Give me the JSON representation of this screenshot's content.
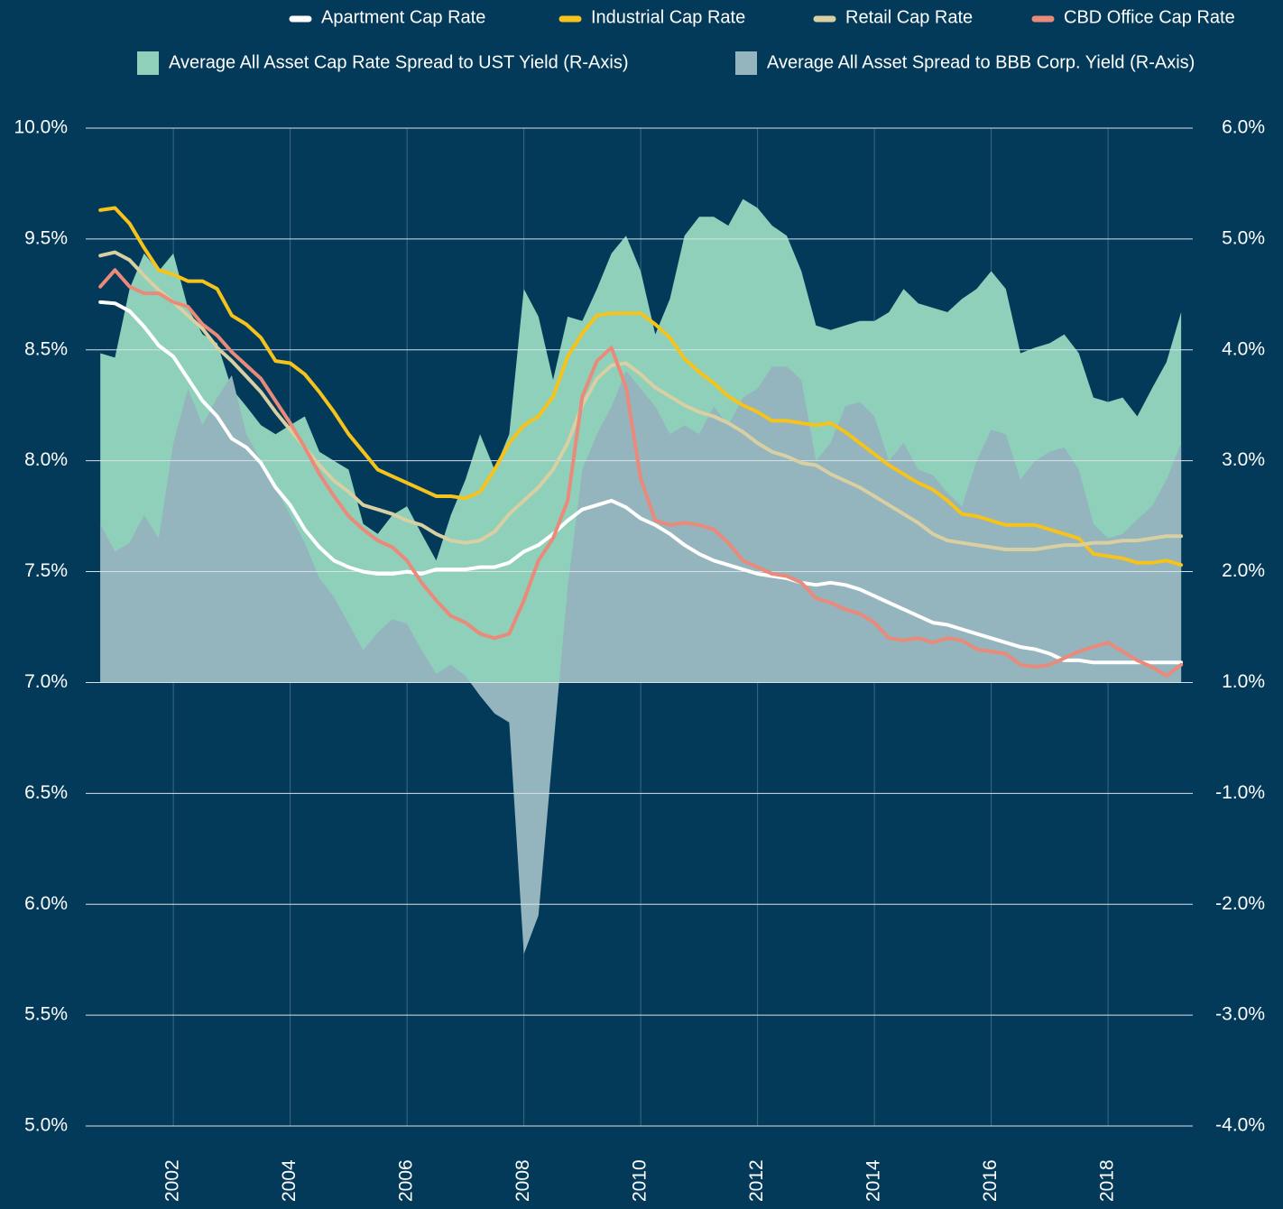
{
  "chart_data": {
    "type": "line",
    "x": [
      2000.75,
      2001,
      2001.25,
      2001.5,
      2001.75,
      2002,
      2002.25,
      2002.5,
      2002.75,
      2003,
      2003.25,
      2003.5,
      2003.75,
      2004,
      2004.25,
      2004.5,
      2004.75,
      2005,
      2005.25,
      2005.5,
      2005.75,
      2006,
      2006.25,
      2006.5,
      2006.75,
      2007,
      2007.25,
      2007.5,
      2007.75,
      2008,
      2008.25,
      2008.5,
      2008.75,
      2009,
      2009.25,
      2009.5,
      2009.75,
      2010,
      2010.25,
      2010.5,
      2010.75,
      2011,
      2011.25,
      2011.5,
      2011.75,
      2012,
      2012.25,
      2012.5,
      2012.75,
      2013,
      2013.25,
      2013.5,
      2013.75,
      2014,
      2014.25,
      2014.5,
      2014.75,
      2015,
      2015.25,
      2015.5,
      2015.75,
      2016,
      2016.25,
      2016.5,
      2016.75,
      2017,
      2017.25,
      2017.5,
      2017.75,
      2018,
      2018.25,
      2018.5,
      2018.75,
      2019,
      2019.25
    ],
    "series": [
      {
        "name": "Apartment Cap Rate",
        "color": "#ffffff",
        "type": "line",
        "values": [
          8.93,
          8.92,
          8.85,
          8.71,
          8.54,
          8.47,
          8.37,
          8.27,
          8.2,
          8.1,
          8.06,
          7.99,
          7.88,
          7.8,
          7.69,
          7.61,
          7.55,
          7.52,
          7.5,
          7.49,
          7.49,
          7.5,
          7.49,
          7.51,
          7.51,
          7.51,
          7.52,
          7.52,
          7.54,
          7.59,
          7.62,
          7.67,
          7.73,
          7.78,
          7.8,
          7.82,
          7.79,
          7.74,
          7.71,
          7.67,
          7.62,
          7.58,
          7.55,
          7.53,
          7.51,
          7.49,
          7.48,
          7.47,
          7.45,
          7.44,
          7.45,
          7.44,
          7.42,
          7.39,
          7.36,
          7.33,
          7.3,
          7.27,
          7.26,
          7.24,
          7.22,
          7.2,
          7.18,
          7.16,
          7.15,
          7.13,
          7.1,
          7.1,
          7.09,
          7.09,
          7.09,
          7.09,
          7.09,
          7.09,
          7.09
        ]
      },
      {
        "name": "Industrial Cap Rate",
        "color": "#f6c21c",
        "type": "line",
        "values": [
          9.63,
          9.64,
          9.57,
          9.42,
          9.22,
          9.18,
          9.12,
          9.12,
          9.05,
          8.81,
          8.73,
          8.61,
          8.45,
          8.44,
          8.39,
          8.31,
          8.22,
          8.12,
          8.04,
          7.96,
          7.93,
          7.9,
          7.87,
          7.84,
          7.84,
          7.83,
          7.86,
          7.96,
          8.08,
          8.16,
          8.2,
          8.29,
          8.47,
          8.65,
          8.81,
          8.83,
          8.83,
          8.83,
          8.73,
          8.61,
          8.46,
          8.4,
          8.35,
          8.29,
          8.25,
          8.22,
          8.18,
          8.18,
          8.17,
          8.16,
          8.17,
          8.13,
          8.08,
          8.03,
          7.98,
          7.94,
          7.9,
          7.87,
          7.82,
          7.76,
          7.75,
          7.73,
          7.71,
          7.71,
          7.71,
          7.69,
          7.67,
          7.65,
          7.58,
          7.57,
          7.56,
          7.54,
          7.54,
          7.55,
          7.53
        ]
      },
      {
        "name": "Retail Cap Rate",
        "color": "#d8cfa2",
        "type": "line",
        "values": [
          9.35,
          9.38,
          9.31,
          9.17,
          9.04,
          8.93,
          8.81,
          8.69,
          8.52,
          8.45,
          8.38,
          8.31,
          8.22,
          8.14,
          8.06,
          7.98,
          7.91,
          7.86,
          7.8,
          7.78,
          7.76,
          7.73,
          7.71,
          7.67,
          7.64,
          7.63,
          7.64,
          7.68,
          7.76,
          7.82,
          7.88,
          7.96,
          8.08,
          8.25,
          8.37,
          8.43,
          8.44,
          8.39,
          8.33,
          8.29,
          8.25,
          8.22,
          8.2,
          8.17,
          8.13,
          8.08,
          8.04,
          8.02,
          7.99,
          7.98,
          7.94,
          7.91,
          7.88,
          7.84,
          7.8,
          7.76,
          7.72,
          7.67,
          7.64,
          7.63,
          7.62,
          7.61,
          7.6,
          7.6,
          7.6,
          7.61,
          7.62,
          7.62,
          7.63,
          7.63,
          7.64,
          7.64,
          7.65,
          7.66,
          7.66
        ]
      },
      {
        "name": "CBD Office Cap Rate",
        "color": "#e98a7a",
        "type": "line",
        "values": [
          9.07,
          9.22,
          9.07,
          9.01,
          9.01,
          8.93,
          8.89,
          8.73,
          8.63,
          8.49,
          8.43,
          8.37,
          8.27,
          8.17,
          8.06,
          7.94,
          7.84,
          7.75,
          7.69,
          7.64,
          7.61,
          7.55,
          7.45,
          7.37,
          7.3,
          7.27,
          7.22,
          7.2,
          7.22,
          7.37,
          7.55,
          7.65,
          7.82,
          8.29,
          8.45,
          8.52,
          8.33,
          7.92,
          7.73,
          7.71,
          7.72,
          7.71,
          7.69,
          7.63,
          7.55,
          7.52,
          7.49,
          7.48,
          7.45,
          7.38,
          7.36,
          7.33,
          7.31,
          7.27,
          7.2,
          7.19,
          7.2,
          7.18,
          7.2,
          7.19,
          7.15,
          7.14,
          7.13,
          7.08,
          7.07,
          7.08,
          7.11,
          7.14,
          7.16,
          7.18,
          7.14,
          7.1,
          7.07,
          7.03,
          7.08
        ]
      },
      {
        "name": "Average All Asset Cap Rate Spread to UST Yield (R-Axis)",
        "color": "#8fd0bb",
        "type": "area",
        "axis": "y2",
        "values": [
          3.97,
          3.93,
          4.55,
          4.87,
          4.71,
          4.87,
          4.38,
          4.14,
          4.06,
          3.65,
          3.49,
          3.32,
          3.24,
          3.32,
          3.4,
          3.08,
          3.0,
          2.92,
          2.43,
          2.34,
          2.51,
          2.59,
          2.34,
          2.1,
          2.51,
          2.83,
          3.24,
          2.92,
          3.24,
          4.55,
          4.3,
          3.73,
          4.3,
          4.26,
          4.55,
          4.87,
          5.03,
          4.71,
          4.14,
          4.46,
          5.03,
          5.2,
          5.2,
          5.12,
          5.36,
          5.28,
          5.12,
          5.03,
          4.71,
          4.22,
          4.18,
          4.22,
          4.26,
          4.26,
          4.34,
          4.55,
          4.42,
          4.38,
          4.34,
          4.46,
          4.55,
          4.71,
          4.55,
          3.97,
          4.02,
          4.06,
          4.14,
          3.97,
          3.57,
          3.53,
          3.57,
          3.4,
          3.65,
          3.89,
          4.34
        ]
      },
      {
        "name": "Average All Asset Spread to BBB Corp. Yield (R-Axis)",
        "color": "#94b4be",
        "type": "area",
        "axis": "y2",
        "values": [
          2.43,
          2.18,
          2.26,
          2.51,
          2.3,
          3.16,
          3.65,
          3.32,
          3.57,
          3.77,
          3.24,
          3.0,
          2.75,
          2.51,
          2.26,
          1.94,
          1.77,
          1.53,
          1.29,
          1.45,
          1.57,
          1.53,
          1.29,
          1.08,
          1.16,
          1.06,
          0.76,
          0.44,
          0.28,
          -2.45,
          -2.1,
          -0.2,
          1.86,
          2.92,
          3.24,
          3.49,
          3.81,
          3.65,
          3.49,
          3.24,
          3.32,
          3.24,
          3.49,
          3.32,
          3.57,
          3.65,
          3.85,
          3.85,
          3.73,
          3.0,
          3.16,
          3.49,
          3.53,
          3.4,
          3.0,
          3.16,
          2.92,
          2.87,
          2.71,
          2.59,
          3.0,
          3.28,
          3.24,
          2.83,
          3.0,
          3.08,
          3.12,
          2.92,
          2.43,
          2.3,
          2.34,
          2.47,
          2.59,
          2.83,
          3.16
        ]
      }
    ],
    "xlim": [
      2000.5,
      2019.45
    ],
    "xticks": [
      2002,
      2004,
      2006,
      2008,
      2010,
      2012,
      2014,
      2016,
      2018
    ],
    "ylim": [
      5,
      10
    ],
    "yticks": [
      {
        "value": 10,
        "label": "10.0%"
      },
      {
        "value": 9.5,
        "label": "9.5%"
      },
      {
        "value": 8.5,
        "label": "8.5%"
      },
      {
        "value": 8,
        "label": "8.0%"
      },
      {
        "value": 7.5,
        "label": "7.5%"
      },
      {
        "value": 7,
        "label": "7.0%"
      },
      {
        "value": 6.5,
        "label": "6.5%"
      },
      {
        "value": 6,
        "label": "6.0%"
      },
      {
        "value": 5.5,
        "label": "5.5%"
      },
      {
        "value": 5,
        "label": "5.0%"
      }
    ],
    "y2lim": [
      -4,
      6
    ],
    "y2ticks": [
      {
        "value": 6,
        "label": "6.0%"
      },
      {
        "value": 5,
        "label": "5.0%"
      },
      {
        "value": 4,
        "label": "4.0%"
      },
      {
        "value": 3,
        "label": "3.0%"
      },
      {
        "value": 2,
        "label": "2.0%"
      },
      {
        "value": 1,
        "label": "1.0%"
      },
      {
        "value": -1,
        "label": "-1.0%"
      },
      {
        "value": -2,
        "label": "-2.0%"
      },
      {
        "value": -3,
        "label": "-3.0%"
      },
      {
        "value": -4,
        "label": "-4.0%"
      }
    ],
    "grid": true,
    "legend": "top-right"
  }
}
